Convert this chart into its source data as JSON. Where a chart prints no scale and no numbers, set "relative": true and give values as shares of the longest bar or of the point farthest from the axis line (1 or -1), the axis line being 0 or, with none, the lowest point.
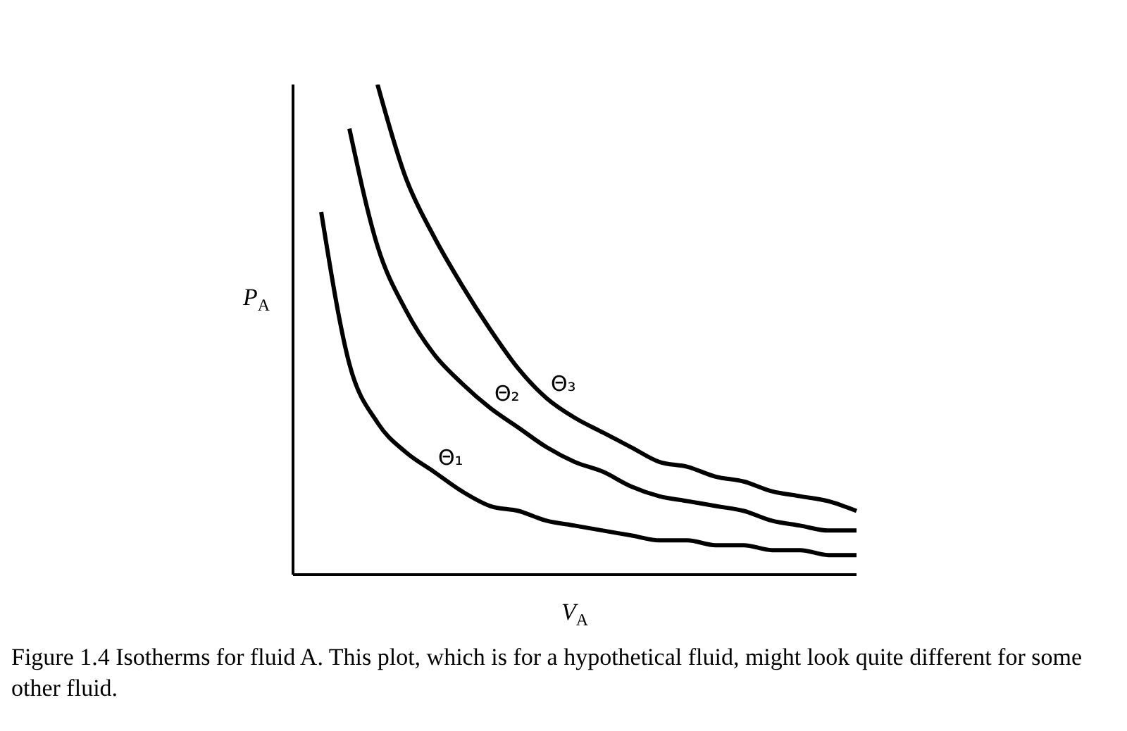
{
  "chart_data": {
    "type": "line",
    "relative": true,
    "xlabel": "V$_{A}$",
    "ylabel": "P$_{A}$",
    "marker": "none",
    "categories": [
      null,
      null,
      null,
      null,
      null,
      null,
      null,
      null,
      null,
      null,
      null,
      null,
      null,
      null,
      null,
      null,
      null,
      null,
      null,
      null,
      null
    ],
    "series": [
      {
        "name": "Θ₁",
        "color": "#000000",
        "values": [
          null,
          0.74,
          0.43,
          0.31,
          0.25,
          0.21,
          0.17,
          0.14,
          0.13,
          0.11,
          0.1,
          0.09,
          0.08,
          0.07,
          0.07,
          0.06,
          0.06,
          0.05,
          0.05,
          0.04,
          0.04
        ]
      },
      {
        "name": "Θ₂",
        "color": "#000000",
        "values": [
          null,
          null,
          0.91,
          0.67,
          0.54,
          0.45,
          0.39,
          0.34,
          0.3,
          0.26,
          0.23,
          0.21,
          0.18,
          0.16,
          0.15,
          0.14,
          0.13,
          0.11,
          0.1,
          0.09,
          0.09
        ]
      },
      {
        "name": "Θ₃",
        "color": "#000000",
        "values": [
          null,
          null,
          null,
          1,
          0.81,
          0.69,
          0.59,
          0.5,
          0.42,
          0.36,
          0.32,
          0.29,
          0.26,
          0.23,
          0.22,
          0.2,
          0.19,
          0.17,
          0.16,
          0.15,
          0.13
        ]
      }
    ],
    "annotations": [
      "Figure 1.4    Isotherms for fluid A. This plot, which is for a hypothetical fluid, might look quite different for some other fluid."
    ]
  }
}
